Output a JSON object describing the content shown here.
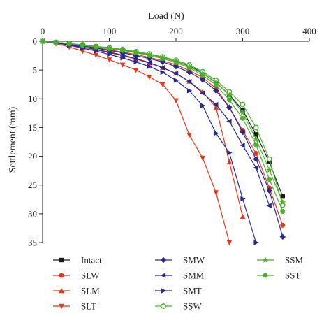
{
  "chart_data": {
    "type": "line",
    "xlabel": "Load (N)",
    "ylabel": "Settlement (mm)",
    "xlim": [
      0,
      400
    ],
    "ylim": [
      0,
      35
    ],
    "y_inverted": true,
    "x_axis_position": "top",
    "xticks": [
      0,
      100,
      200,
      300,
      400
    ],
    "yticks": [
      0,
      5,
      10,
      15,
      20,
      25,
      30,
      35
    ],
    "grid": false,
    "legend_position": "bottom",
    "series": [
      {
        "name": "Intact",
        "color": "#1a1a1a",
        "marker": "square",
        "x": [
          0,
          20,
          40,
          60,
          80,
          100,
          120,
          140,
          160,
          180,
          200,
          220,
          240,
          260,
          280,
          300,
          320,
          340,
          360
        ],
        "y": [
          0,
          0.2,
          0.4,
          0.7,
          0.9,
          1.2,
          1.5,
          1.9,
          2.3,
          2.8,
          3.5,
          4.3,
          5.5,
          7.2,
          9.3,
          12.0,
          16.2,
          21.0,
          27.0
        ]
      },
      {
        "name": "SLW",
        "color": "#e03a1e",
        "marker": "circle",
        "x": [
          0,
          20,
          40,
          60,
          80,
          100,
          120,
          140,
          160,
          180,
          200,
          220,
          240,
          260,
          280,
          300,
          320,
          340,
          360
        ],
        "y": [
          0,
          0.2,
          0.5,
          0.8,
          1.1,
          1.5,
          1.9,
          2.3,
          2.8,
          3.4,
          4.1,
          5.1,
          6.3,
          8.2,
          11.5,
          15.5,
          19.5,
          25.5,
          32.0
        ]
      },
      {
        "name": "SLM",
        "color": "#e03a1e",
        "marker": "triangle-up",
        "x": [
          0,
          20,
          40,
          60,
          80,
          100,
          120,
          140,
          160,
          180,
          200,
          220,
          240,
          260,
          280,
          300
        ],
        "y": [
          0,
          0.3,
          0.6,
          1.0,
          1.5,
          2.0,
          2.5,
          3.1,
          3.8,
          4.6,
          5.6,
          7.0,
          8.8,
          11.5,
          21.0,
          30.5
        ]
      },
      {
        "name": "SLT",
        "color": "#e03a1e",
        "marker": "triangle-down",
        "x": [
          0,
          20,
          40,
          60,
          80,
          100,
          120,
          140,
          160,
          180,
          200,
          220,
          240,
          260,
          280
        ],
        "y": [
          0,
          0.4,
          1.0,
          1.7,
          2.4,
          3.2,
          4.1,
          5.0,
          6.2,
          7.5,
          10.3,
          16.3,
          20.3,
          26.3,
          35.0
        ]
      },
      {
        "name": "SMW",
        "color": "#2b2a8c",
        "marker": "diamond",
        "x": [
          0,
          20,
          40,
          60,
          80,
          100,
          120,
          140,
          160,
          180,
          200,
          220,
          240,
          260,
          280,
          300,
          320,
          340,
          360
        ],
        "y": [
          0,
          0.2,
          0.5,
          0.8,
          1.2,
          1.6,
          2.0,
          2.5,
          3.0,
          3.6,
          4.4,
          5.4,
          6.7,
          8.6,
          11.5,
          15.8,
          20.5,
          26.0,
          34.0
        ]
      },
      {
        "name": "SMM",
        "color": "#2b2a8c",
        "marker": "triangle-left",
        "x": [
          0,
          20,
          40,
          60,
          80,
          100,
          120,
          140,
          160,
          180,
          200,
          220,
          240,
          260,
          280,
          300,
          320,
          340
        ],
        "y": [
          0,
          0.3,
          0.6,
          1.0,
          1.4,
          1.9,
          2.4,
          3.0,
          3.7,
          4.6,
          5.6,
          7.0,
          9.0,
          11.0,
          13.9,
          18.1,
          22.0,
          28.6
        ]
      },
      {
        "name": "SMT",
        "color": "#2b2a8c",
        "marker": "triangle-right",
        "x": [
          0,
          20,
          40,
          60,
          80,
          100,
          120,
          140,
          160,
          180,
          200,
          220,
          240,
          260,
          280,
          300,
          320
        ],
        "y": [
          0,
          0.3,
          0.7,
          1.2,
          1.7,
          2.3,
          2.9,
          3.6,
          4.4,
          5.4,
          6.8,
          8.6,
          11.2,
          16.0,
          19.4,
          27.4,
          35.0
        ]
      },
      {
        "name": "SSW",
        "color": "#4caf2e",
        "marker": "circle-open",
        "x": [
          0,
          20,
          40,
          60,
          80,
          100,
          120,
          140,
          160,
          180,
          200,
          220,
          240,
          260,
          280,
          300,
          320,
          340,
          360
        ],
        "y": [
          0,
          0.2,
          0.4,
          0.6,
          0.9,
          1.1,
          1.4,
          1.8,
          2.2,
          2.7,
          3.3,
          4.1,
          5.3,
          6.8,
          8.8,
          11.0,
          15.0,
          20.5,
          28.5
        ]
      },
      {
        "name": "SSM",
        "color": "#4caf2e",
        "marker": "star",
        "x": [
          0,
          20,
          40,
          60,
          80,
          100,
          120,
          140,
          160,
          180,
          200,
          220,
          240,
          260,
          280,
          300,
          320,
          340,
          360
        ],
        "y": [
          0,
          0.2,
          0.4,
          0.7,
          0.9,
          1.2,
          1.5,
          1.9,
          2.3,
          2.8,
          3.5,
          4.4,
          5.6,
          7.1,
          9.4,
          12.4,
          17.0,
          22.4,
          28.0
        ]
      },
      {
        "name": "SST",
        "color": "#4caf2e",
        "marker": "circle",
        "x": [
          0,
          20,
          40,
          60,
          80,
          100,
          120,
          140,
          160,
          180,
          200,
          220,
          240,
          260,
          280,
          300,
          320,
          340,
          360
        ],
        "y": [
          0,
          0.2,
          0.4,
          0.7,
          1.0,
          1.3,
          1.6,
          2.0,
          2.5,
          3.0,
          3.7,
          4.6,
          5.9,
          7.6,
          10.2,
          13.4,
          18.0,
          24.0,
          29.6
        ]
      }
    ]
  }
}
